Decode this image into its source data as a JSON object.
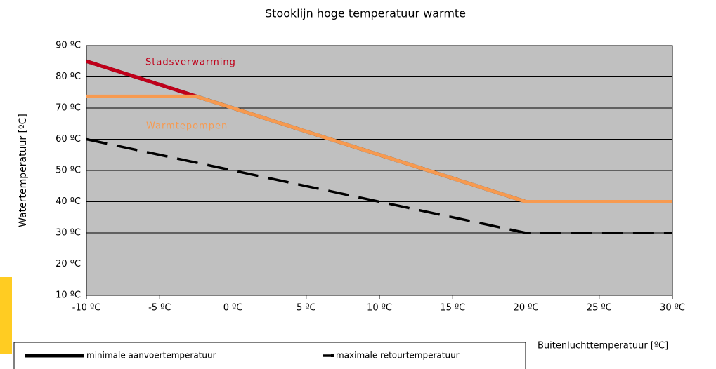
{
  "chart_data": {
    "type": "line",
    "title": "Stooklijn hoge temperatuur warmte",
    "x_label": "Buitenluchttemperatuur [ºC]",
    "y_label": "Watertemperatuur [ºC]",
    "xlim": [
      -10,
      30
    ],
    "ylim": [
      10,
      90
    ],
    "xticks": [
      {
        "value": -10,
        "label": "-10 ºC"
      },
      {
        "value": -5,
        "label": "-5 ºC"
      },
      {
        "value": 0,
        "label": "0 ºC"
      },
      {
        "value": 5,
        "label": "5 ºC"
      },
      {
        "value": 10,
        "label": "10 ºC"
      },
      {
        "value": 15,
        "label": "15 ºC"
      },
      {
        "value": 20,
        "label": "20 ºC"
      },
      {
        "value": 25,
        "label": "25 ºC"
      },
      {
        "value": 30,
        "label": "30 ºC"
      }
    ],
    "yticks": [
      {
        "value": 10,
        "label": "10 ºC"
      },
      {
        "value": 20,
        "label": "20 ºC"
      },
      {
        "value": 30,
        "label": "30 ºC"
      },
      {
        "value": 40,
        "label": "40 ºC"
      },
      {
        "value": 50,
        "label": "50 ºC"
      },
      {
        "value": 60,
        "label": "60 ºC"
      },
      {
        "value": 70,
        "label": "70 ºC"
      },
      {
        "value": 80,
        "label": "80 ºC"
      },
      {
        "value": 90,
        "label": "90 ºC"
      }
    ],
    "grid": true,
    "series": [
      {
        "name": "minimale aanvoertemperatuur",
        "color": "#000000",
        "x": [
          -10,
          20,
          30
        ],
        "values": [
          85,
          40,
          40
        ],
        "label_position": "legend"
      },
      {
        "name": "maximale retourtemperatuur",
        "color": "#000000",
        "dash": true,
        "x": [
          -10,
          20,
          30
        ],
        "values": [
          60,
          30,
          30
        ],
        "label_position": "legend"
      },
      {
        "name": "Stadsverwarming",
        "color": "#c0001a",
        "x": [
          -10,
          -2.5
        ],
        "values": [
          85,
          73.75
        ],
        "label_position": "inline"
      },
      {
        "name": "Warmtepompen",
        "color": "#f79a50",
        "x": [
          -10,
          -2.5,
          20,
          30
        ],
        "values": [
          73.75,
          73.75,
          40,
          40
        ],
        "label_position": "inline"
      }
    ]
  }
}
